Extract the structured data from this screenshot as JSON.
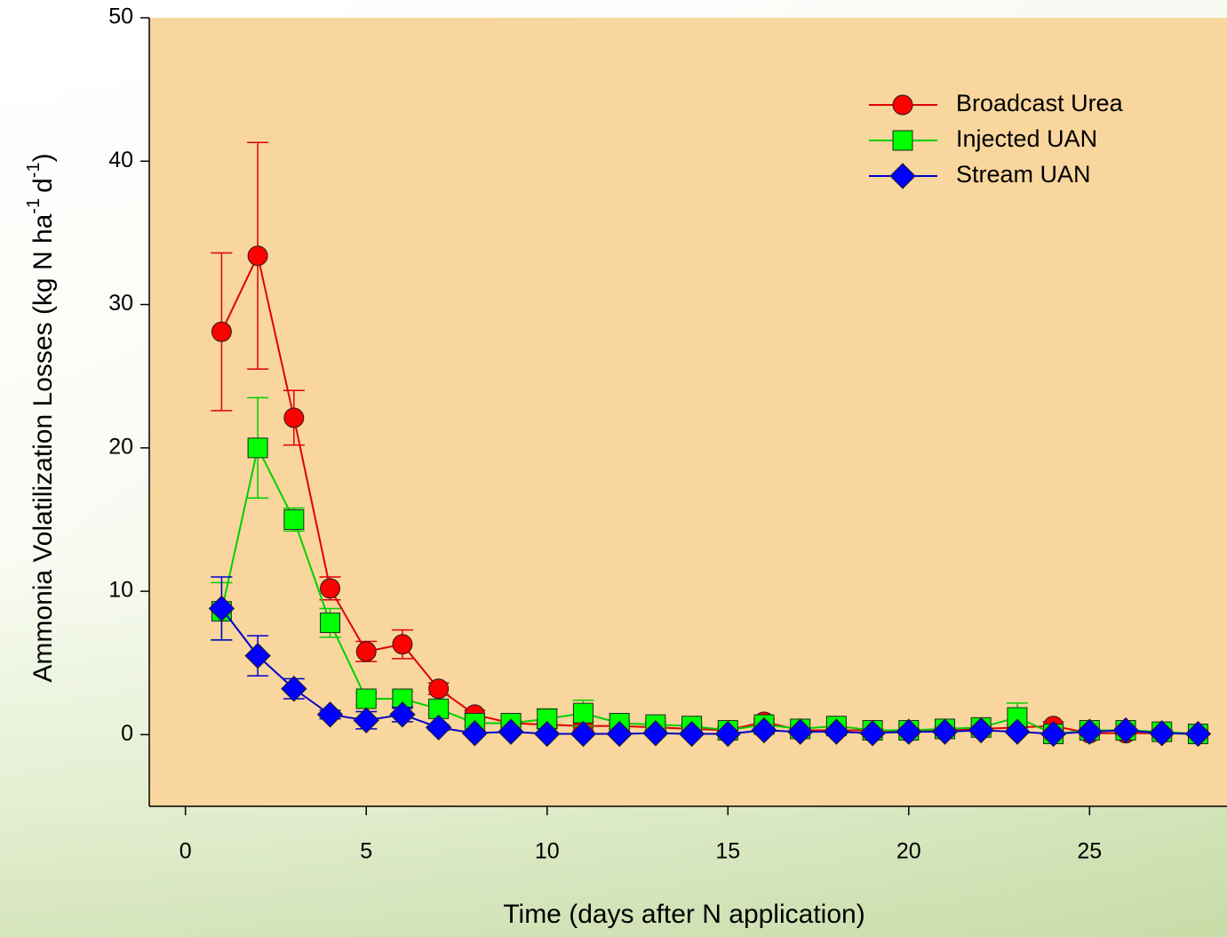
{
  "chart_data": {
    "type": "line",
    "xlabel": "Time (days after N application)",
    "ylabel": [
      "Ammonia Volatilization Losses (kg N ha",
      "-1",
      "d",
      "-1",
      ")"
    ],
    "x": [
      1,
      2,
      3,
      4,
      5,
      6,
      7,
      8,
      9,
      10,
      11,
      12,
      13,
      14,
      15,
      16,
      17,
      18,
      19,
      20,
      21,
      22,
      23,
      24,
      25,
      26,
      27,
      28
    ],
    "xlim": [
      -1,
      28.8
    ],
    "xticks": [
      0,
      5,
      10,
      15,
      20,
      25
    ],
    "ylim": [
      -5,
      50
    ],
    "yticks": [
      0,
      10,
      20,
      30,
      40,
      50
    ],
    "plot_color": "#f9d69d",
    "legend": "upper-right",
    "series": [
      {
        "name": "Broadcast Urea",
        "color": "#ff0000",
        "line_color": "#e00000",
        "marker": "circle",
        "values": [
          28.1,
          33.4,
          22.1,
          10.2,
          5.8,
          6.3,
          3.2,
          1.4,
          0.8,
          0.7,
          0.6,
          0.6,
          0.5,
          0.4,
          0.3,
          0.9,
          0.3,
          0.3,
          0.3,
          0.2,
          0.3,
          0.4,
          0.5,
          0.6,
          0.1,
          0.1,
          0.1,
          0.05
        ],
        "errors": [
          5.5,
          7.9,
          1.9,
          0.8,
          0.7,
          1.0,
          0.4,
          0.3,
          0.2,
          0.2,
          0.3,
          0.2,
          0.2,
          0.2,
          0.2,
          0.2,
          0.1,
          0.1,
          0.1,
          0.1,
          0.1,
          0.1,
          0.2,
          0.3,
          0.1,
          0.1,
          0.1,
          0.1
        ]
      },
      {
        "name": "Injected UAN",
        "color": "#00ff00",
        "line_color": "#00d000",
        "marker": "square",
        "values": [
          8.6,
          20.0,
          15.0,
          7.8,
          2.5,
          2.5,
          1.8,
          0.8,
          0.8,
          1.1,
          1.5,
          0.8,
          0.7,
          0.6,
          0.3,
          0.7,
          0.4,
          0.6,
          0.3,
          0.3,
          0.4,
          0.5,
          1.2,
          0.05,
          0.3,
          0.3,
          0.2,
          0.05
        ],
        "errors": [
          2.0,
          3.5,
          0.8,
          1.0,
          0.4,
          0.5,
          0.4,
          0.2,
          0.2,
          0.7,
          0.9,
          0.2,
          0.2,
          0.2,
          0.1,
          0.2,
          0.1,
          0.2,
          0.1,
          0.1,
          0.1,
          0.2,
          1.0,
          0.1,
          0.1,
          0.1,
          0.1,
          0.1
        ]
      },
      {
        "name": "Stream UAN",
        "color": "#0000ff",
        "line_color": "#0000d0",
        "marker": "diamond",
        "values": [
          8.8,
          5.5,
          3.2,
          1.4,
          1.0,
          1.4,
          0.5,
          0.1,
          0.2,
          0.05,
          0.05,
          0.05,
          0.1,
          0.05,
          0.05,
          0.3,
          0.2,
          0.2,
          0.1,
          0.2,
          0.2,
          0.3,
          0.2,
          0.05,
          0.2,
          0.3,
          0.1,
          0.05
        ],
        "errors": [
          2.2,
          1.4,
          0.7,
          0.3,
          0.6,
          0.5,
          0.2,
          0.1,
          0.1,
          0.1,
          0.1,
          0.1,
          0.1,
          0.1,
          0.1,
          0.1,
          0.1,
          0.1,
          0.1,
          0.1,
          0.1,
          0.1,
          0.1,
          0.1,
          0.1,
          0.1,
          0.1,
          0.1
        ]
      }
    ]
  }
}
